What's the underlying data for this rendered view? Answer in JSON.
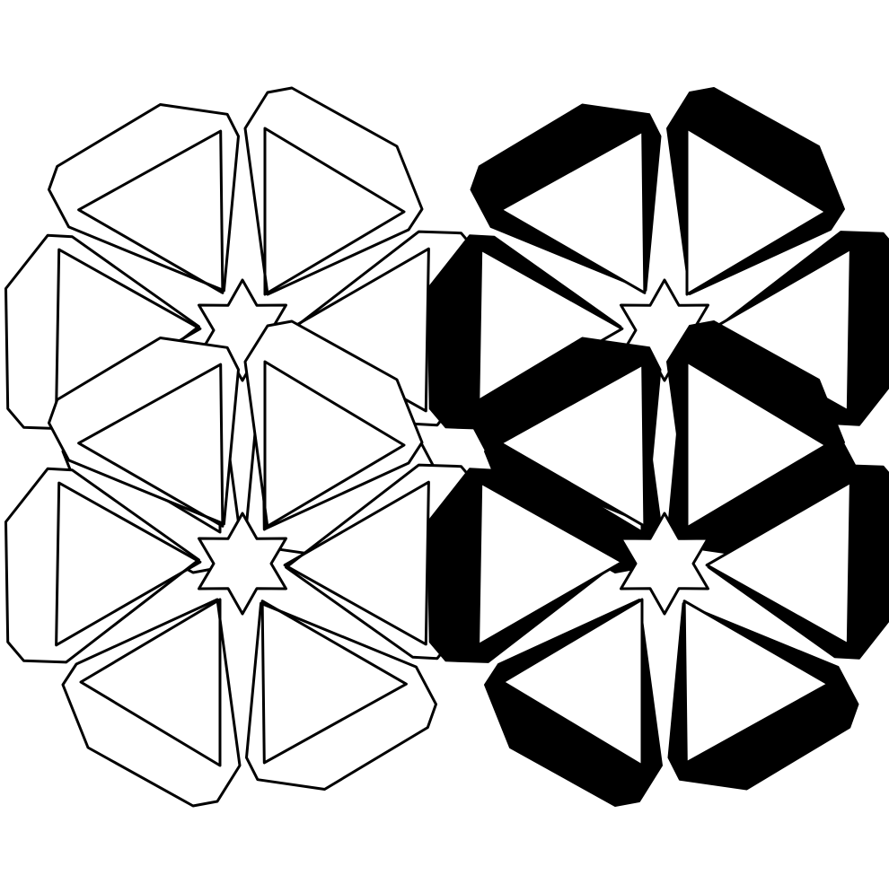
{
  "figure": {
    "background": "#ffffff",
    "stroke_color": "#000000",
    "fill_color": "#000000",
    "panels": [
      {
        "name": "outline-tiling",
        "style": "outline",
        "stars": 2,
        "blocks_per_star": 6
      },
      {
        "name": "shaded-tiling",
        "style": "shaded",
        "stars": 2,
        "blocks_per_star": 6
      }
    ]
  }
}
